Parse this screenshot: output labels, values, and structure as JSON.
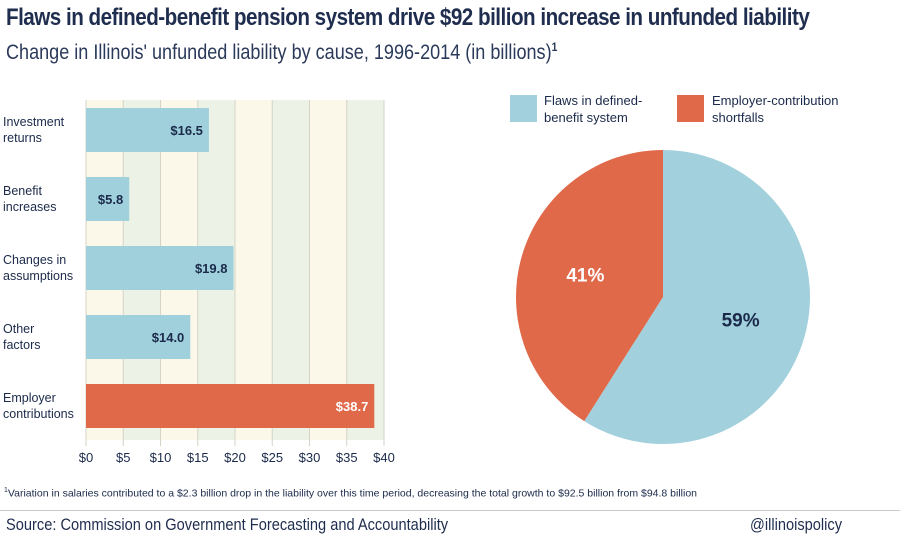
{
  "header": {
    "title": "Flaws in defined-benefit pension system drive $92 billion increase in unfunded liability",
    "subtitle": "Change in Illinois' unfunded liability by cause, 1996-2014 (in billions)",
    "subtitle_note": "1"
  },
  "chart_data": [
    {
      "type": "bar",
      "orientation": "horizontal",
      "categories": [
        "Investment returns",
        "Benefit increases",
        "Changes in assumptions",
        "Other factors",
        "Employer contributions"
      ],
      "category_lines": [
        [
          "Investment",
          "returns"
        ],
        [
          "Benefit",
          "increases"
        ],
        [
          "Changes in",
          "assumptions"
        ],
        [
          "Other",
          "factors"
        ],
        [
          "Employer",
          "contributions"
        ]
      ],
      "values": [
        16.5,
        5.8,
        19.8,
        14.0,
        38.7
      ],
      "data_labels": [
        "$16.5",
        "$5.8",
        "$19.8",
        "$14.0",
        "$38.7"
      ],
      "colors": [
        "#9fd0dc",
        "#9fd0dc",
        "#9fd0dc",
        "#9fd0dc",
        "#e0694a"
      ],
      "xlim": [
        0,
        40
      ],
      "xticks": [
        "$0",
        "$5",
        "$10",
        "$15",
        "$20",
        "$25",
        "$30",
        "$35",
        "$40"
      ],
      "band_colors": [
        "#fbf7e9",
        "#edf2e6"
      ],
      "grid": true
    },
    {
      "type": "pie",
      "slices": [
        {
          "name": "Flaws in defined-benefit system",
          "legend_lines": [
            "Flaws in defined-",
            "benefit system"
          ],
          "value": 59,
          "label": "59%",
          "color": "#a2d1dd"
        },
        {
          "name": "Employer-contribution shortfalls",
          "legend_lines": [
            "Employer-contribution",
            "shortfalls"
          ],
          "value": 41,
          "label": "41%",
          "color": "#e0694a"
        }
      ],
      "legend_position": "top"
    }
  ],
  "footer": {
    "footnote_mark": "1",
    "footnote": "Variation in salaries contributed to a $2.3 billion drop in the liability over this time period, decreasing the total growth to $92.5 billion from $94.8 billion",
    "source": "Source: Commission on Government Forecasting and Accountability",
    "handle": "@illinoispolicy"
  }
}
